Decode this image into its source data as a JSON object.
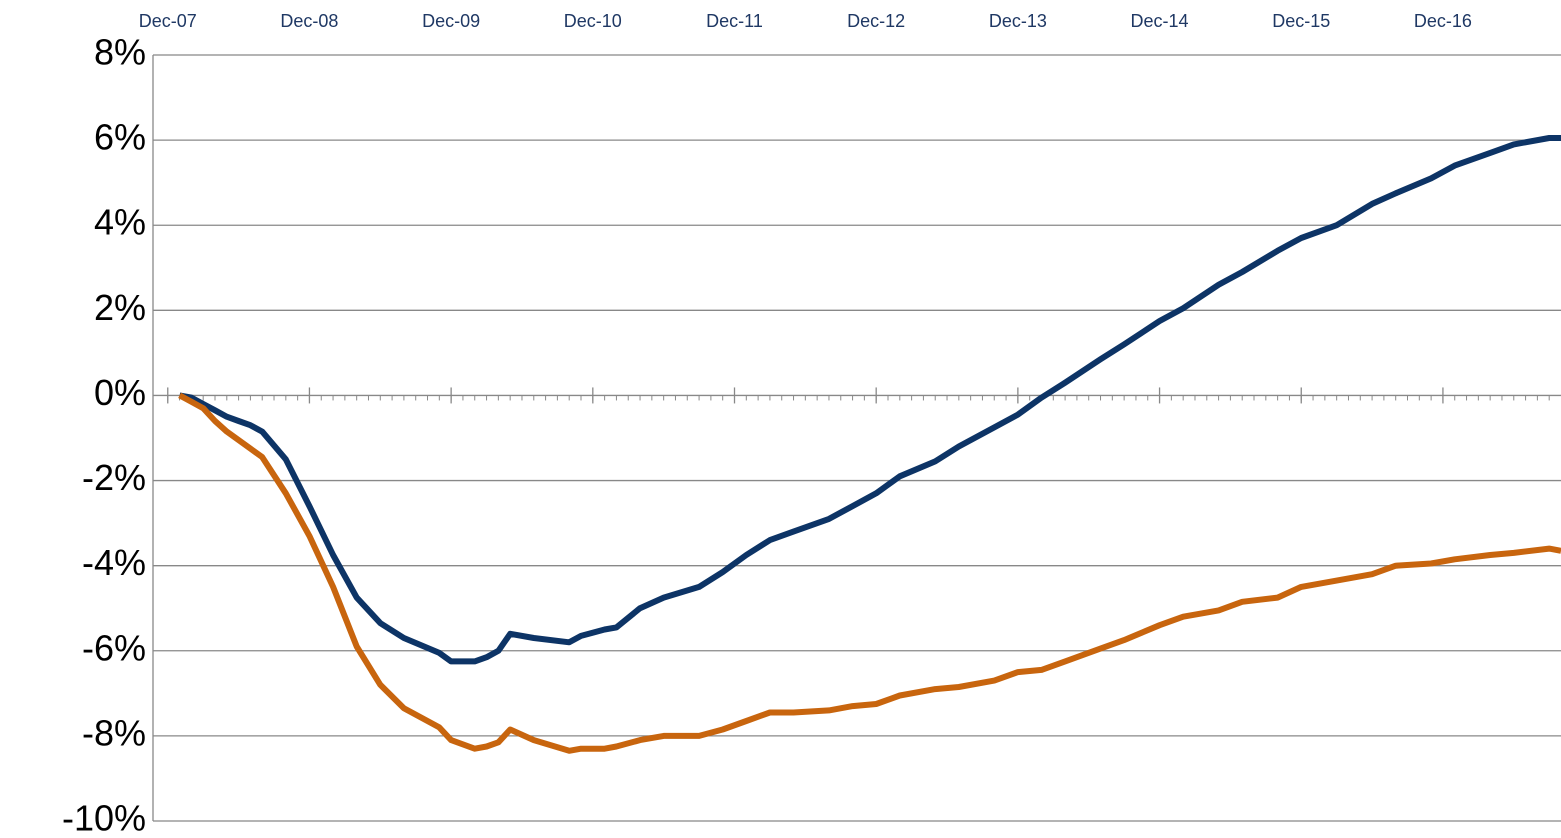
{
  "chart_data": {
    "type": "line",
    "x": [
      1,
      2,
      3,
      4,
      5,
      6,
      7,
      8,
      10,
      12,
      14,
      16,
      18,
      20,
      23,
      24,
      26,
      27,
      28,
      29,
      31,
      34,
      35,
      37,
      38,
      40,
      42,
      45,
      47,
      49,
      51,
      53,
      56,
      58,
      60,
      62,
      65,
      67,
      70,
      72,
      74,
      76,
      79,
      81,
      84,
      86,
      89,
      91,
      94,
      96,
      99,
      102,
      104,
      107,
      109,
      112,
      114,
      117,
      118
    ],
    "series": [
      {
        "color": "#0d3466",
        "values": [
          0,
          -0.05,
          -0.2,
          -0.35,
          -0.5,
          -0.6,
          -0.7,
          -0.85,
          -1.5,
          -2.6,
          -3.75,
          -4.75,
          -5.35,
          -5.7,
          -6.05,
          -6.25,
          -6.25,
          -6.15,
          -6.0,
          -5.6,
          -5.7,
          -5.8,
          -5.65,
          -5.5,
          -5.45,
          -5.0,
          -4.75,
          -4.5,
          -4.15,
          -3.75,
          -3.4,
          -3.2,
          -2.9,
          -2.6,
          -2.3,
          -1.9,
          -1.55,
          -1.2,
          -0.75,
          -0.45,
          -0.05,
          0.3,
          0.85,
          1.2,
          1.75,
          2.05,
          2.6,
          2.9,
          3.4,
          3.7,
          4.0,
          4.5,
          4.75,
          5.1,
          5.4,
          5.7,
          5.9,
          6.05,
          6.05
        ]
      },
      {
        "color": "#c8650e",
        "values": [
          0,
          -0.15,
          -0.3,
          -0.6,
          -0.85,
          -1.05,
          -1.25,
          -1.45,
          -2.3,
          -3.3,
          -4.5,
          -5.9,
          -6.8,
          -7.35,
          -7.8,
          -8.1,
          -8.3,
          -8.25,
          -8.15,
          -7.85,
          -8.1,
          -8.35,
          -8.3,
          -8.3,
          -8.25,
          -8.1,
          -8.0,
          -8.0,
          -7.85,
          -7.65,
          -7.45,
          -7.45,
          -7.4,
          -7.3,
          -7.25,
          -7.05,
          -6.9,
          -6.85,
          -6.7,
          -6.5,
          -6.45,
          -6.25,
          -5.95,
          -5.75,
          -5.4,
          -5.2,
          -5.05,
          -4.85,
          -4.75,
          -4.5,
          -4.35,
          -4.2,
          -4.0,
          -3.95,
          -3.85,
          -3.75,
          -3.7,
          -3.6,
          -3.65
        ]
      }
    ],
    "xlim": [
      -1.25,
      118
    ],
    "xticks": [
      {
        "value": 0,
        "label": "Dec-07"
      },
      {
        "value": 12,
        "label": "Dec-08"
      },
      {
        "value": 24,
        "label": "Dec-09"
      },
      {
        "value": 36,
        "label": "Dec-10"
      },
      {
        "value": 48,
        "label": "Dec-11"
      },
      {
        "value": 60,
        "label": "Dec-12"
      },
      {
        "value": 72,
        "label": "Dec-13"
      },
      {
        "value": 84,
        "label": "Dec-14"
      },
      {
        "value": 96,
        "label": "Dec-15"
      },
      {
        "value": 108,
        "label": "Dec-16"
      }
    ],
    "ylim": [
      -10,
      8
    ],
    "yticks": [
      {
        "value": -10,
        "label": "-10%"
      },
      {
        "value": -8,
        "label": "-8%"
      },
      {
        "value": -6,
        "label": "-6%"
      },
      {
        "value": -4,
        "label": "-4%"
      },
      {
        "value": -2,
        "label": "-2%"
      },
      {
        "value": 0,
        "label": "0%"
      },
      {
        "value": 2,
        "label": "2%"
      },
      {
        "value": 4,
        "label": "4%"
      },
      {
        "value": 6,
        "label": "6%"
      },
      {
        "value": 8,
        "label": "8%"
      }
    ],
    "grid": true
  }
}
